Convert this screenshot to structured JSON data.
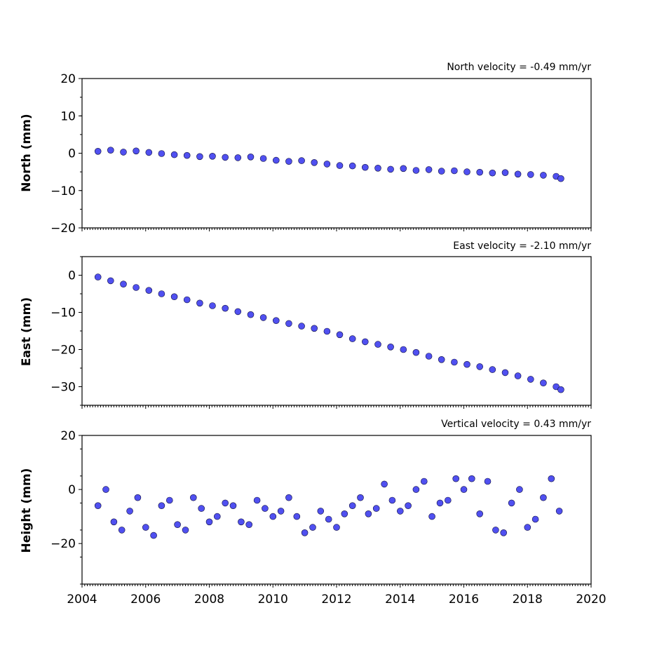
{
  "chart_data": [
    {
      "type": "scatter",
      "title": "North velocity = -0.49 mm/yr",
      "ylabel": "North (mm)",
      "xlabel": "",
      "xlim": [
        2004,
        2020
      ],
      "ylim": [
        -20,
        20
      ],
      "yticks": [
        20,
        10,
        0,
        -10,
        -20
      ],
      "ytick_labels": [
        "20",
        "10",
        "0",
        "−10",
        "−20"
      ],
      "show_x_tick_labels": false,
      "grid": false,
      "series": [
        {
          "color": "#5050f0",
          "x": [
            2004.5,
            2004.9,
            2005.3,
            2005.7,
            2006.1,
            2006.5,
            2006.9,
            2007.3,
            2007.7,
            2008.1,
            2008.5,
            2008.9,
            2009.3,
            2009.7,
            2010.1,
            2010.5,
            2010.9,
            2011.3,
            2011.7,
            2012.1,
            2012.5,
            2012.9,
            2013.3,
            2013.7,
            2014.1,
            2014.5,
            2014.9,
            2015.3,
            2015.7,
            2016.1,
            2016.5,
            2016.9,
            2017.3,
            2017.7,
            2018.1,
            2018.5,
            2018.9,
            2019.05
          ],
          "y": [
            0.5,
            0.8,
            0.3,
            0.6,
            0.2,
            -0.1,
            -0.4,
            -0.6,
            -0.9,
            -0.8,
            -1.1,
            -1.2,
            -1.0,
            -1.4,
            -1.9,
            -2.2,
            -2.0,
            -2.5,
            -2.9,
            -3.3,
            -3.4,
            -3.8,
            -4.0,
            -4.3,
            -4.1,
            -4.6,
            -4.4,
            -4.8,
            -4.7,
            -5.0,
            -5.1,
            -5.3,
            -5.2,
            -5.6,
            -5.7,
            -5.9,
            -6.2,
            -6.8
          ]
        }
      ]
    },
    {
      "type": "scatter",
      "title": "East velocity = -2.10 mm/yr",
      "ylabel": "East (mm)",
      "xlabel": "",
      "xlim": [
        2004,
        2020
      ],
      "ylim": [
        -35,
        5
      ],
      "yticks": [
        0,
        -10,
        -20,
        -30
      ],
      "ytick_labels": [
        "0",
        "−10",
        "−20",
        "−30"
      ],
      "show_x_tick_labels": false,
      "grid": false,
      "series": [
        {
          "color": "#5050f0",
          "x": [
            2004.5,
            2004.9,
            2005.3,
            2005.7,
            2006.1,
            2006.5,
            2006.9,
            2007.3,
            2007.7,
            2008.1,
            2008.5,
            2008.9,
            2009.3,
            2009.7,
            2010.1,
            2010.5,
            2010.9,
            2011.3,
            2011.7,
            2012.1,
            2012.5,
            2012.9,
            2013.3,
            2013.7,
            2014.1,
            2014.5,
            2014.9,
            2015.3,
            2015.7,
            2016.1,
            2016.5,
            2016.9,
            2017.3,
            2017.7,
            2018.1,
            2018.5,
            2018.9,
            2019.05
          ],
          "y": [
            -0.5,
            -1.5,
            -2.4,
            -3.3,
            -4.1,
            -5.0,
            -5.8,
            -6.6,
            -7.5,
            -8.2,
            -8.9,
            -9.8,
            -10.6,
            -11.4,
            -12.2,
            -13.0,
            -13.7,
            -14.3,
            -15.1,
            -16.0,
            -17.1,
            -17.9,
            -18.6,
            -19.3,
            -20.0,
            -20.8,
            -21.8,
            -22.7,
            -23.4,
            -24.0,
            -24.6,
            -25.4,
            -26.2,
            -27.1,
            -28.0,
            -29.0,
            -30.0,
            -30.8
          ]
        }
      ]
    },
    {
      "type": "scatter",
      "title": "Vertical velocity = 0.43 mm/yr",
      "ylabel": "Height (mm)",
      "xlabel": "",
      "xlim": [
        2004,
        2020
      ],
      "ylim": [
        -35,
        20
      ],
      "yticks": [
        20,
        0,
        -20
      ],
      "ytick_labels": [
        "20",
        "0",
        "−20"
      ],
      "xticks": [
        2004,
        2006,
        2008,
        2010,
        2012,
        2014,
        2016,
        2018,
        2020
      ],
      "xtick_labels": [
        "2004",
        "2006",
        "2008",
        "2010",
        "2012",
        "2014",
        "2016",
        "2018",
        "2020"
      ],
      "show_x_tick_labels": true,
      "grid": false,
      "series": [
        {
          "color": "#5050f0",
          "x": [
            2004.5,
            2004.75,
            2005.0,
            2005.25,
            2005.5,
            2005.75,
            2006.0,
            2006.25,
            2006.5,
            2006.75,
            2007.0,
            2007.25,
            2007.5,
            2007.75,
            2008.0,
            2008.25,
            2008.5,
            2008.75,
            2009.0,
            2009.25,
            2009.5,
            2009.75,
            2010.0,
            2010.25,
            2010.5,
            2010.75,
            2011.0,
            2011.25,
            2011.5,
            2011.75,
            2012.0,
            2012.25,
            2012.5,
            2012.75,
            2013.0,
            2013.25,
            2013.5,
            2013.75,
            2014.0,
            2014.25,
            2014.5,
            2014.75,
            2015.0,
            2015.25,
            2015.5,
            2015.75,
            2016.0,
            2016.25,
            2016.5,
            2016.75,
            2017.0,
            2017.25,
            2017.5,
            2017.75,
            2018.0,
            2018.25,
            2018.5,
            2018.75,
            2019.0
          ],
          "y": [
            -6,
            0,
            -12,
            -15,
            -8,
            -3,
            -14,
            -17,
            -6,
            -4,
            -13,
            -15,
            -3,
            -7,
            -12,
            -10,
            -5,
            -6,
            -12,
            -13,
            -4,
            -7,
            -10,
            -8,
            -3,
            -10,
            -16,
            -14,
            -8,
            -11,
            -14,
            -9,
            -6,
            -3,
            -9,
            -7,
            2,
            -4,
            -8,
            -6,
            0,
            3,
            -10,
            -5,
            -4,
            4,
            0,
            4,
            -9,
            3,
            -15,
            -16,
            -5,
            0,
            -14,
            -11,
            -3,
            4,
            -8
          ]
        }
      ]
    }
  ]
}
